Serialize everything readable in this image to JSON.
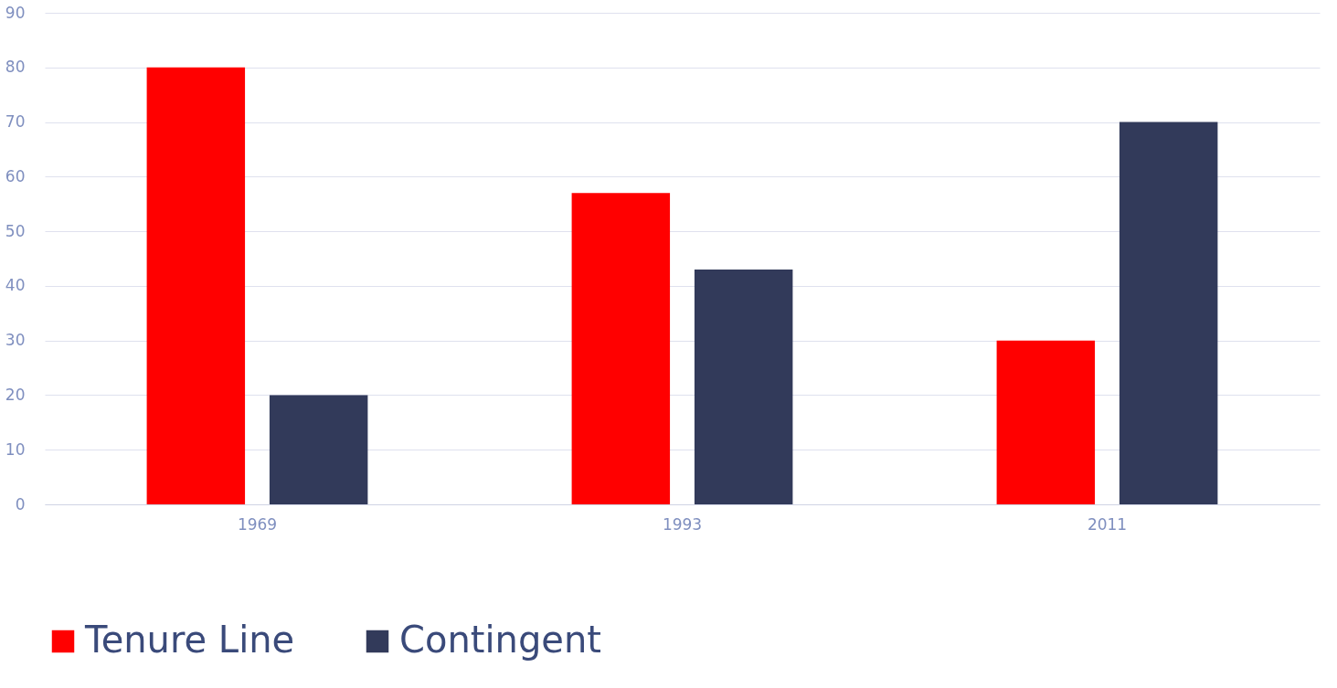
{
  "chart_data": {
    "type": "bar",
    "categories": [
      "1969",
      "1993",
      "2011"
    ],
    "series": [
      {
        "name": "Tenure Line",
        "color": "#ff0000",
        "values": [
          80,
          57,
          30
        ]
      },
      {
        "name": "Contingent",
        "color": "#323a5a",
        "values": [
          20,
          43,
          70
        ]
      }
    ],
    "ylim": [
      0,
      90
    ],
    "yticks": [
      0,
      10,
      20,
      30,
      40,
      50,
      60,
      70,
      80,
      90
    ],
    "grid": "y",
    "legend": "bottom"
  }
}
